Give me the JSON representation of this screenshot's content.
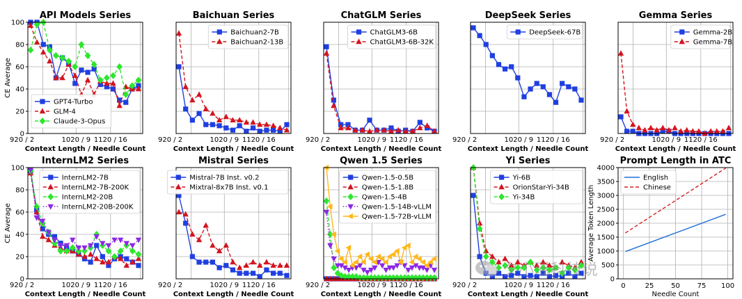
{
  "colors": {
    "blue": "#1f3fe0",
    "red": "#d4141e",
    "green": "#2ee62e",
    "purple": "#8c28e6",
    "orange": "#ffb81a",
    "line_blue": "#1f6fd6",
    "line_red": "#d42020",
    "grid": "#b0b0b0"
  },
  "shared": {
    "ylabel": "CE Average",
    "xlabel": "Context Length / Needle Count",
    "ylim": [
      0,
      100
    ],
    "yticks": [
      0,
      20,
      40,
      60,
      80,
      100
    ],
    "xticks": [
      "920 / 2",
      "1020 / 9",
      "1120 / 16"
    ]
  },
  "watermark": {
    "text": "夕小瑶科技说"
  },
  "chart_data": [
    {
      "type": "line",
      "title": "API Models Series",
      "legend_position": "bottom-left",
      "series": [
        {
          "name": "GPT4-Turbo",
          "color": "blue",
          "marker": "square",
          "dash": false,
          "values": [
            100,
            100,
            80,
            78,
            50,
            68,
            63,
            45,
            57,
            55,
            58,
            44,
            42,
            40,
            30,
            28,
            40,
            43
          ]
        },
        {
          "name": "GLM-4",
          "color": "red",
          "marker": "triangle",
          "dash": true,
          "values": [
            97,
            82,
            73,
            65,
            50,
            50,
            62,
            52,
            35,
            48,
            35,
            47,
            45,
            45,
            25,
            42,
            40,
            40
          ]
        },
        {
          "name": "Claude-3-Opus",
          "color": "green",
          "marker": "diamond",
          "dash": true,
          "values": [
            75,
            98,
            100,
            75,
            70,
            68,
            65,
            60,
            80,
            70,
            62,
            48,
            50,
            52,
            60,
            35,
            43,
            48
          ]
        }
      ]
    },
    {
      "type": "line",
      "title": "Baichuan Series",
      "legend_position": "top-right",
      "series": [
        {
          "name": "Baichuan2-7B",
          "color": "blue",
          "marker": "square",
          "dash": false,
          "values": [
            60,
            22,
            12,
            18,
            8,
            8,
            7,
            5,
            3,
            7,
            2,
            5,
            2,
            3,
            3,
            2,
            8
          ]
        },
        {
          "name": "Baichuan2-13B",
          "color": "red",
          "marker": "triangle",
          "dash": true,
          "values": [
            90,
            42,
            30,
            35,
            22,
            18,
            12,
            15,
            12,
            12,
            10,
            10,
            8,
            8,
            7,
            5,
            3
          ]
        }
      ]
    },
    {
      "type": "line",
      "title": "ChatGLM Series",
      "legend_position": "top-right",
      "series": [
        {
          "name": "ChatGLM3-6B",
          "color": "blue",
          "marker": "square",
          "dash": false,
          "values": [
            78,
            30,
            8,
            8,
            3,
            3,
            12,
            3,
            3,
            5,
            2,
            3,
            2,
            10,
            5,
            2
          ]
        },
        {
          "name": "ChatGLM3-6B-32K",
          "color": "red",
          "marker": "triangle",
          "dash": true,
          "values": [
            72,
            25,
            5,
            5,
            3,
            3,
            2,
            3,
            3,
            2,
            3,
            2,
            2,
            5,
            7,
            2
          ]
        }
      ]
    },
    {
      "type": "line",
      "title": "DeepSeek Series",
      "legend_position": "top-right",
      "series": [
        {
          "name": "DeepSeek-67B",
          "color": "blue",
          "marker": "square",
          "dash": false,
          "values": [
            95,
            88,
            80,
            70,
            62,
            58,
            60,
            50,
            33,
            40,
            45,
            42,
            35,
            28,
            45,
            42,
            40,
            30
          ]
        }
      ]
    },
    {
      "type": "line",
      "title": "Gemma Series",
      "legend_position": "top-right",
      "series": [
        {
          "name": "Gemma-2B",
          "color": "blue",
          "marker": "square",
          "dash": false,
          "values": [
            15,
            2,
            2,
            0,
            0,
            0,
            0,
            2,
            2,
            0,
            0,
            0,
            0,
            0,
            0,
            0,
            0,
            0,
            0
          ]
        },
        {
          "name": "Gemma-7B",
          "color": "red",
          "marker": "triangle",
          "dash": true,
          "values": [
            72,
            20,
            8,
            5,
            3,
            5,
            3,
            5,
            3,
            5,
            2,
            3,
            2,
            2,
            0,
            2,
            2,
            2,
            5
          ]
        }
      ]
    },
    {
      "type": "line",
      "title": "InternLM2 Series",
      "legend_position": "top-right",
      "series": [
        {
          "name": "InternLM2-7B",
          "color": "blue",
          "marker": "square",
          "dash": false,
          "values": [
            97,
            62,
            45,
            40,
            38,
            32,
            28,
            25,
            22,
            18,
            15,
            30,
            20,
            12,
            18,
            20,
            18,
            15,
            12
          ]
        },
        {
          "name": "InternLM2-7B-200K",
          "color": "red",
          "marker": "triangle",
          "dash": true,
          "values": [
            95,
            60,
            38,
            35,
            30,
            28,
            25,
            25,
            22,
            20,
            22,
            18,
            15,
            15,
            20,
            18,
            12,
            15,
            18
          ]
        },
        {
          "name": "InternLM2-20B",
          "color": "green",
          "marker": "diamond",
          "dash": true,
          "values": [
            97,
            65,
            50,
            42,
            32,
            25,
            25,
            28,
            25,
            25,
            28,
            40,
            30,
            25,
            20,
            25,
            30,
            25,
            22
          ]
        },
        {
          "name": "InternLM2-20B-200K",
          "color": "purple",
          "marker": "tri-down",
          "dash": "dotted",
          "values": [
            98,
            55,
            52,
            42,
            35,
            30,
            30,
            35,
            28,
            28,
            30,
            38,
            32,
            30,
            35,
            35,
            32,
            30,
            35
          ]
        }
      ]
    },
    {
      "type": "line",
      "title": "Mistral Series",
      "legend_position": "top-right",
      "series": [
        {
          "name": "Mistral-7B Inst. v0.2",
          "color": "blue",
          "marker": "square",
          "dash": false,
          "values": [
            75,
            50,
            20,
            15,
            15,
            15,
            10,
            12,
            8,
            5,
            5,
            5,
            2,
            8,
            5,
            5,
            3
          ]
        },
        {
          "name": "Mixtral-8x7B Inst. v0.1",
          "color": "red",
          "marker": "triangle",
          "dash": true,
          "values": [
            60,
            58,
            40,
            35,
            48,
            30,
            25,
            30,
            15,
            10,
            12,
            15,
            12,
            15,
            12,
            12,
            12
          ]
        }
      ]
    },
    {
      "type": "line",
      "title": "Qwen 1.5 Series",
      "legend_position": "top-right",
      "series": [
        {
          "name": "Qwen-1.5-0.5B",
          "color": "blue",
          "marker": "square",
          "dash": false,
          "values": [
            0,
            0,
            0,
            0,
            0,
            0,
            0,
            0,
            0,
            0,
            0,
            0,
            0,
            0,
            0,
            0,
            0,
            0,
            0,
            0,
            0,
            0,
            0,
            0,
            0,
            0,
            0,
            0,
            0,
            0
          ]
        },
        {
          "name": "Qwen-1.5-1.8B",
          "color": "red",
          "marker": "triangle",
          "dash": true,
          "values": [
            0,
            0,
            0,
            0,
            0,
            0,
            0,
            0,
            0,
            0,
            0,
            0,
            0,
            0,
            0,
            0,
            0,
            0,
            0,
            0,
            0,
            0,
            0,
            0,
            0,
            0,
            0,
            0,
            0,
            0
          ]
        },
        {
          "name": "Qwen-1.5-4B",
          "color": "green",
          "marker": "diamond",
          "dash": true,
          "values": [
            70,
            40,
            10,
            5,
            3,
            2,
            2,
            2,
            2,
            1,
            1,
            1,
            1,
            1,
            1,
            1,
            1,
            1,
            1,
            1,
            1,
            1,
            1,
            1,
            1,
            1,
            1,
            1,
            1,
            1
          ]
        },
        {
          "name": "Qwen-1.5-14B-vLLM",
          "color": "purple",
          "marker": "tri-down",
          "dash": "dotted",
          "values": [
            60,
            30,
            18,
            12,
            12,
            10,
            8,
            10,
            10,
            12,
            8,
            6,
            8,
            10,
            15,
            12,
            8,
            10,
            10,
            12,
            15,
            12,
            8,
            10,
            12,
            10,
            10,
            8,
            12,
            8
          ]
        },
        {
          "name": "Qwen-1.5-72B-vLLM",
          "color": "orange",
          "marker": "tri-left",
          "dash": false,
          "values": [
            100,
            65,
            40,
            25,
            18,
            15,
            28,
            12,
            15,
            20,
            15,
            22,
            18,
            15,
            20,
            18,
            15,
            20,
            22,
            25,
            15,
            28,
            30,
            15,
            20,
            18,
            15,
            12,
            15,
            18
          ]
        }
      ]
    },
    {
      "type": "line",
      "title": "Yi Series",
      "legend_position": "top-right",
      "series": [
        {
          "name": "Yi-6B",
          "color": "blue",
          "marker": "square",
          "dash": false,
          "values": [
            75,
            20,
            5,
            2,
            5,
            2,
            3,
            5,
            2,
            3,
            2,
            5,
            2,
            3,
            2,
            5,
            2,
            5
          ]
        },
        {
          "name": "OrionStar-Yi-34B",
          "color": "red",
          "marker": "triangle",
          "dash": true,
          "values": [
            100,
            50,
            25,
            20,
            15,
            18,
            12,
            15,
            12,
            15,
            12,
            15,
            12,
            10,
            15,
            12,
            10,
            15
          ]
        },
        {
          "name": "Yi-34B",
          "color": "green",
          "marker": "diamond",
          "dash": true,
          "values": [
            100,
            45,
            20,
            15,
            10,
            12,
            8,
            10,
            10,
            15,
            8,
            10,
            8,
            10,
            5,
            10,
            8,
            12
          ]
        }
      ]
    },
    {
      "type": "line",
      "title": "Prompt Length in ATC",
      "legend_position": "top-left",
      "xlabel": "Needle Count",
      "ylabel": "Average Token Length",
      "xlim": [
        0,
        100
      ],
      "ylim": [
        0,
        4000
      ],
      "xticks": [
        0,
        25,
        50,
        75,
        100
      ],
      "yticks": [
        0,
        500,
        1000,
        1500,
        2000,
        2500,
        3000,
        3500,
        4000
      ],
      "series": [
        {
          "name": "English",
          "color": "line_blue",
          "dash": false,
          "x": [
            2,
            98
          ],
          "y": [
            980,
            2320
          ]
        },
        {
          "name": "Chinese",
          "color": "line_red",
          "dash": true,
          "x": [
            2,
            98
          ],
          "y": [
            1650,
            3980
          ]
        }
      ]
    }
  ]
}
